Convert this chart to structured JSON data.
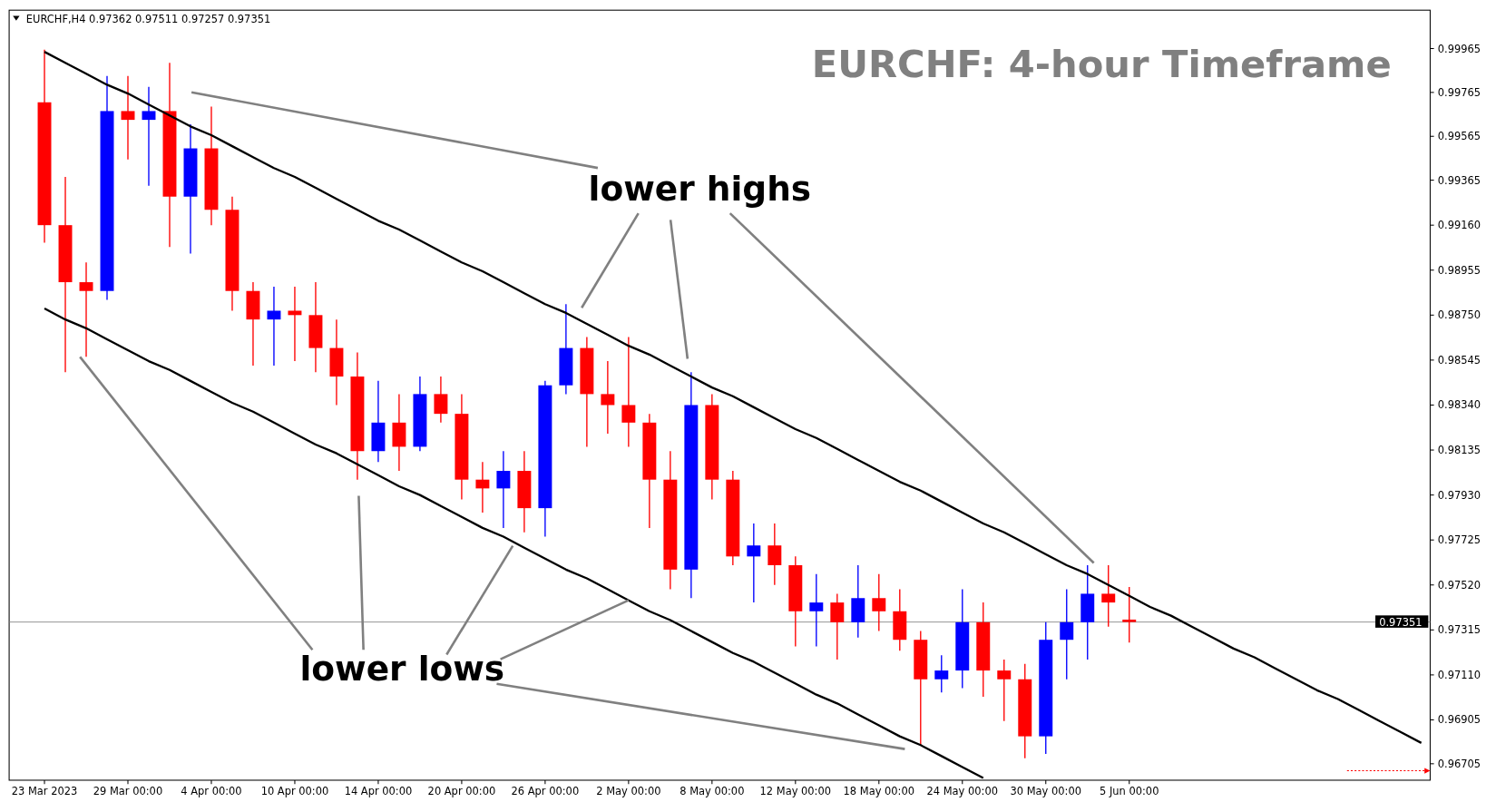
{
  "chart_data": {
    "type": "candlestick",
    "title": "EURCHF: 4-hour Timeframe",
    "annotations": [
      "EURCHF,H4  0.97362 0.97511 0.97257 0.97351",
      "lower highs",
      {
        "text": "lower lows",
        "x": "2 May 00:00",
        "y": 0.9745
      }
    ],
    "categories": [
      "23 Mar 2023",
      null,
      null,
      null,
      "29 Mar 00:00",
      null,
      null,
      null,
      "4 Apr 00:00",
      null,
      null,
      null,
      "10 Apr 00:00",
      null,
      null,
      null,
      "14 Apr 00:00",
      null,
      null,
      null,
      "20 Apr 00:00",
      null,
      null,
      null,
      "26 Apr 00:00",
      null,
      null,
      null,
      "2 May 00:00",
      null,
      null,
      null,
      "8 May 00:00",
      null,
      null,
      null,
      "12 May 00:00",
      null,
      null,
      null,
      "18 May 00:00",
      null,
      null,
      null,
      "24 May 00:00",
      null,
      null,
      null,
      "30 May 00:00",
      null,
      null,
      null,
      "5 Jun 00:00",
      null,
      null,
      null,
      null,
      null,
      null,
      null,
      null,
      null,
      null,
      null,
      null,
      null,
      null
    ],
    "ohlc": [
      [
        0.9972,
        0.9996,
        0.9908,
        0.9916
      ],
      [
        0.9916,
        0.9938,
        0.9849,
        0.989
      ],
      [
        0.989,
        0.9899,
        0.9856,
        0.9886
      ],
      [
        0.9886,
        0.9984,
        0.9882,
        0.9968
      ],
      [
        0.9968,
        0.9984,
        0.9946,
        0.9964
      ],
      [
        0.9964,
        0.9979,
        0.9934,
        0.9968
      ],
      [
        0.9968,
        0.999,
        0.9906,
        0.9929
      ],
      [
        0.9929,
        0.9962,
        0.9903,
        0.9951
      ],
      [
        0.9951,
        0.997,
        0.9916,
        0.9923
      ],
      [
        0.9923,
        0.9929,
        0.9877,
        0.9886
      ],
      [
        0.9886,
        0.989,
        0.9852,
        0.9873
      ],
      [
        0.9873,
        0.9888,
        0.9852,
        0.9877
      ],
      [
        0.9877,
        0.9888,
        0.9854,
        0.9875
      ],
      [
        0.9875,
        0.989,
        0.9849,
        0.986
      ],
      [
        0.986,
        0.9873,
        0.9834,
        0.9847
      ],
      [
        0.9847,
        0.9858,
        0.98,
        0.9813
      ],
      [
        0.9813,
        0.9845,
        0.9808,
        0.9826
      ],
      [
        0.9826,
        0.9839,
        0.9804,
        0.9815
      ],
      [
        0.9815,
        0.9847,
        0.9813,
        0.9839
      ],
      [
        0.9839,
        0.9847,
        0.9826,
        0.983
      ],
      [
        0.983,
        0.9839,
        0.9791,
        0.98
      ],
      [
        0.98,
        0.9808,
        0.9785,
        0.9796
      ],
      [
        0.9796,
        0.9813,
        0.9778,
        0.9804
      ],
      [
        0.9804,
        0.9813,
        0.9776,
        0.9787
      ],
      [
        0.9787,
        0.9845,
        0.9774,
        0.9843
      ],
      [
        0.9843,
        0.988,
        0.9839,
        0.986
      ],
      [
        0.986,
        0.9865,
        0.9815,
        0.9839
      ],
      [
        0.9839,
        0.9854,
        0.9821,
        0.9834
      ],
      [
        0.9834,
        0.9865,
        0.9815,
        0.9826
      ],
      [
        0.9826,
        0.983,
        0.9778,
        0.98
      ],
      [
        0.98,
        0.9813,
        0.975,
        0.9759
      ],
      [
        0.9759,
        0.9849,
        0.9746,
        0.9834
      ],
      [
        0.9834,
        0.9839,
        0.9791,
        0.98
      ],
      [
        0.98,
        0.9804,
        0.9761,
        0.9765
      ],
      [
        0.9765,
        0.978,
        0.9744,
        0.977
      ],
      [
        0.977,
        0.978,
        0.9752,
        0.9761
      ],
      [
        0.9761,
        0.9765,
        0.9724,
        0.974
      ],
      [
        0.974,
        0.9757,
        0.9724,
        0.9744
      ],
      [
        0.9744,
        0.9748,
        0.9718,
        0.9735
      ],
      [
        0.9735,
        0.9761,
        0.9728,
        0.9746
      ],
      [
        0.9746,
        0.9757,
        0.9731,
        0.974
      ],
      [
        0.974,
        0.975,
        0.9722,
        0.9727
      ],
      [
        0.9727,
        0.9731,
        0.9679,
        0.9709
      ],
      [
        0.9709,
        0.972,
        0.9703,
        0.9713
      ],
      [
        0.9713,
        0.975,
        0.9705,
        0.9735
      ],
      [
        0.9735,
        0.9744,
        0.9701,
        0.9713
      ],
      [
        0.9713,
        0.9718,
        0.969,
        0.9709
      ],
      [
        0.9709,
        0.9716,
        0.9673,
        0.9683
      ],
      [
        0.9683,
        0.9735,
        0.9675,
        0.9727
      ],
      [
        0.9727,
        0.975,
        0.9709,
        0.9735
      ],
      [
        0.9735,
        0.9761,
        0.9718,
        0.9748
      ],
      [
        0.9748,
        0.9761,
        0.9733,
        0.9744
      ],
      [
        0.97362,
        0.97511,
        0.97257,
        0.97351
      ],
      null,
      null,
      null,
      null,
      null,
      null,
      null,
      null,
      null,
      null,
      null,
      null,
      null,
      null
    ],
    "colors": [
      "#ff0000",
      "#ff0000",
      "#ff0000",
      "#0000ff",
      "#ff0000",
      "#0000ff",
      "#ff0000",
      "#0000ff",
      "#ff0000",
      "#ff0000",
      "#ff0000",
      "#0000ff",
      "#ff0000",
      "#ff0000",
      "#ff0000",
      "#ff0000",
      "#0000ff",
      "#ff0000",
      "#0000ff",
      "#ff0000",
      "#ff0000",
      "#ff0000",
      "#0000ff",
      "#ff0000",
      "#0000ff",
      "#0000ff",
      "#ff0000",
      "#ff0000",
      "#ff0000",
      "#ff0000",
      "#ff0000",
      "#0000ff",
      "#ff0000",
      "#ff0000",
      "#0000ff",
      "#ff0000",
      "#ff0000",
      "#0000ff",
      "#ff0000",
      "#0000ff",
      "#ff0000",
      "#ff0000",
      "#ff0000",
      "#0000ff",
      "#0000ff",
      "#ff0000",
      "#ff0000",
      "#ff0000",
      "#0000ff",
      "#0000ff",
      "#0000ff",
      "#ff0000",
      "#ff0000",
      null,
      null,
      null,
      null,
      null,
      null,
      null,
      null,
      null,
      null,
      null,
      null,
      null,
      null
    ],
    "series": [
      {
        "type": "line",
        "color": "#000000",
        "values": [
          0.9995,
          0.999,
          0.9985,
          0.998,
          0.9976,
          0.9971,
          0.9966,
          0.9961,
          0.9957,
          0.9952,
          0.9947,
          0.9942,
          0.9938,
          0.9933,
          0.9928,
          0.9923,
          0.9918,
          0.9914,
          0.9909,
          0.9904,
          0.9899,
          0.9895,
          0.989,
          0.9885,
          0.988,
          0.9876,
          0.9871,
          0.9866,
          0.9861,
          0.9857,
          0.9852,
          0.9847,
          0.9842,
          0.9838,
          0.9833,
          0.9828,
          0.9823,
          0.9819,
          0.9814,
          0.9809,
          0.9804,
          0.9799,
          0.9795,
          0.979,
          0.9785,
          0.978,
          0.9776,
          0.9771,
          0.9766,
          0.9761,
          0.9757,
          0.9752,
          0.9747,
          0.9742,
          0.9738,
          0.9733,
          0.9728,
          0.9723,
          0.9719,
          0.9714,
          0.9709,
          0.9704,
          0.97,
          0.9695,
          0.969,
          0.9685,
          0.968
        ]
      },
      {
        "type": "line",
        "color": "#000000",
        "values": [
          0.9878,
          0.9873,
          0.9869,
          0.9864,
          0.9859,
          0.9854,
          0.985,
          0.9845,
          0.984,
          0.9835,
          0.9831,
          0.9826,
          0.9821,
          0.9816,
          0.9812,
          0.9807,
          0.9802,
          0.9797,
          0.9793,
          0.9788,
          0.9783,
          0.9778,
          0.9774,
          0.9769,
          0.9764,
          0.9759,
          0.9755,
          0.975,
          0.9745,
          0.974,
          0.9736,
          0.9731,
          0.9726,
          0.9721,
          0.9717,
          0.9712,
          0.9707,
          0.9702,
          0.9698,
          0.9693,
          0.9688,
          0.9683,
          0.9679,
          0.9674,
          0.9669,
          0.9664,
          null,
          null,
          null,
          null,
          null,
          null,
          null,
          null,
          null,
          null,
          null,
          null,
          null,
          null,
          null,
          null,
          null,
          null,
          null,
          null,
          null
        ]
      }
    ],
    "ylim": [
      0.9663,
      1.0014
    ],
    "yticks": [
      0.99965,
      0.99765,
      0.99565,
      0.99365,
      {
        "value": 0.9916,
        "label": "0.99160"
      },
      0.98955,
      {
        "value": 0.9875,
        "label": "0.98750"
      },
      0.98545,
      {
        "value": 0.9834,
        "label": "0.98340"
      },
      0.98135,
      {
        "value": 0.9793,
        "label": "0.97930"
      },
      0.97725,
      {
        "value": 0.9752,
        "label": "0.97520"
      },
      0.97315,
      {
        "value": 0.9711,
        "label": "0.97110"
      },
      0.96905,
      0.96705
    ],
    "ref_lines": [
      {
        "axis": "y",
        "value": 0.97351,
        "label": "0.97351",
        "color": "#808080"
      }
    ]
  }
}
